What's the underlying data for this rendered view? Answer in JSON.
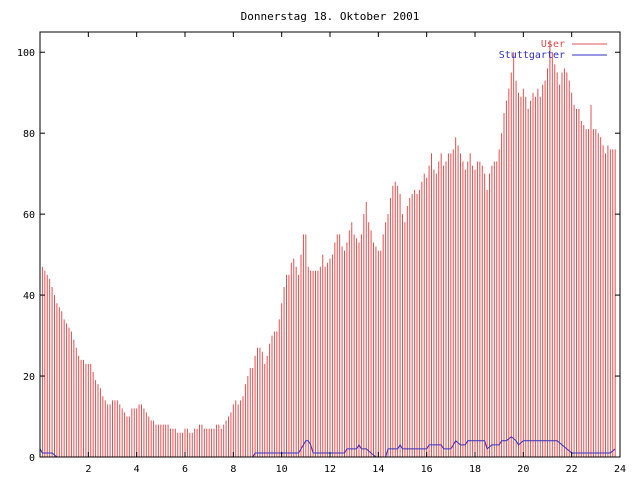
{
  "chart_data": {
    "type": "bar",
    "title": "Donnerstag 18. Oktober 2001",
    "xlabel": "",
    "ylabel": "",
    "xlim": [
      0,
      24
    ],
    "ylim": [
      0,
      105
    ],
    "x_ticks": [
      2,
      4,
      6,
      8,
      10,
      12,
      14,
      16,
      18,
      20,
      22,
      24
    ],
    "y_ticks": [
      0,
      20,
      40,
      60,
      80,
      100
    ],
    "grid": false,
    "legend_position": "top-right",
    "series": [
      {
        "name": "User",
        "style": "impulses",
        "color": "#e05050",
        "points": [
          [
            0.0,
            48
          ],
          [
            0.1,
            47
          ],
          [
            0.2,
            46
          ],
          [
            0.3,
            45
          ],
          [
            0.4,
            44
          ],
          [
            0.5,
            42
          ],
          [
            0.6,
            40
          ],
          [
            0.7,
            38
          ],
          [
            0.8,
            37
          ],
          [
            0.9,
            36
          ],
          [
            1.0,
            34
          ],
          [
            1.1,
            33
          ],
          [
            1.2,
            32
          ],
          [
            1.3,
            31
          ],
          [
            1.4,
            29
          ],
          [
            1.5,
            27
          ],
          [
            1.6,
            25
          ],
          [
            1.7,
            24
          ],
          [
            1.8,
            24
          ],
          [
            1.9,
            23
          ],
          [
            2.0,
            23
          ],
          [
            2.1,
            23
          ],
          [
            2.2,
            21
          ],
          [
            2.3,
            19
          ],
          [
            2.4,
            18
          ],
          [
            2.5,
            17
          ],
          [
            2.6,
            15
          ],
          [
            2.7,
            14
          ],
          [
            2.8,
            13
          ],
          [
            2.9,
            13
          ],
          [
            3.0,
            14
          ],
          [
            3.1,
            14
          ],
          [
            3.2,
            14
          ],
          [
            3.3,
            13
          ],
          [
            3.4,
            12
          ],
          [
            3.5,
            11
          ],
          [
            3.6,
            10
          ],
          [
            3.7,
            10
          ],
          [
            3.8,
            12
          ],
          [
            3.9,
            12
          ],
          [
            4.0,
            12
          ],
          [
            4.1,
            13
          ],
          [
            4.2,
            13
          ],
          [
            4.3,
            12
          ],
          [
            4.4,
            11
          ],
          [
            4.5,
            10
          ],
          [
            4.6,
            9
          ],
          [
            4.7,
            9
          ],
          [
            4.8,
            8
          ],
          [
            4.9,
            8
          ],
          [
            5.0,
            8
          ],
          [
            5.1,
            8
          ],
          [
            5.2,
            8
          ],
          [
            5.3,
            8
          ],
          [
            5.4,
            7
          ],
          [
            5.5,
            7
          ],
          [
            5.6,
            7
          ],
          [
            5.7,
            6
          ],
          [
            5.8,
            6
          ],
          [
            5.9,
            6
          ],
          [
            6.0,
            7
          ],
          [
            6.1,
            7
          ],
          [
            6.2,
            6
          ],
          [
            6.3,
            6
          ],
          [
            6.4,
            7
          ],
          [
            6.5,
            7
          ],
          [
            6.6,
            8
          ],
          [
            6.7,
            8
          ],
          [
            6.8,
            7
          ],
          [
            6.9,
            7
          ],
          [
            7.0,
            7
          ],
          [
            7.1,
            7
          ],
          [
            7.2,
            7
          ],
          [
            7.3,
            8
          ],
          [
            7.4,
            8
          ],
          [
            7.5,
            7
          ],
          [
            7.6,
            8
          ],
          [
            7.7,
            9
          ],
          [
            7.8,
            10
          ],
          [
            7.9,
            11
          ],
          [
            8.0,
            13
          ],
          [
            8.1,
            14
          ],
          [
            8.2,
            13
          ],
          [
            8.3,
            14
          ],
          [
            8.4,
            15
          ],
          [
            8.5,
            18
          ],
          [
            8.6,
            20
          ],
          [
            8.7,
            22
          ],
          [
            8.8,
            22
          ],
          [
            8.9,
            25
          ],
          [
            9.0,
            27
          ],
          [
            9.1,
            27
          ],
          [
            9.2,
            26
          ],
          [
            9.3,
            23
          ],
          [
            9.4,
            25
          ],
          [
            9.5,
            28
          ],
          [
            9.6,
            30
          ],
          [
            9.7,
            31
          ],
          [
            9.8,
            31
          ],
          [
            9.9,
            34
          ],
          [
            10.0,
            38
          ],
          [
            10.1,
            42
          ],
          [
            10.2,
            45
          ],
          [
            10.3,
            45
          ],
          [
            10.4,
            48
          ],
          [
            10.5,
            49
          ],
          [
            10.6,
            47
          ],
          [
            10.7,
            45
          ],
          [
            10.8,
            50
          ],
          [
            10.9,
            55
          ],
          [
            11.0,
            55
          ],
          [
            11.1,
            47
          ],
          [
            11.2,
            46
          ],
          [
            11.3,
            46
          ],
          [
            11.4,
            46
          ],
          [
            11.5,
            46
          ],
          [
            11.6,
            47
          ],
          [
            11.7,
            50
          ],
          [
            11.8,
            47
          ],
          [
            11.9,
            48
          ],
          [
            12.0,
            49
          ],
          [
            12.1,
            50
          ],
          [
            12.2,
            53
          ],
          [
            12.3,
            55
          ],
          [
            12.4,
            55
          ],
          [
            12.5,
            52
          ],
          [
            12.6,
            51
          ],
          [
            12.7,
            53
          ],
          [
            12.8,
            56
          ],
          [
            12.9,
            58
          ],
          [
            13.0,
            55
          ],
          [
            13.1,
            54
          ],
          [
            13.2,
            53
          ],
          [
            13.3,
            55
          ],
          [
            13.4,
            60
          ],
          [
            13.5,
            63
          ],
          [
            13.6,
            58
          ],
          [
            13.7,
            56
          ],
          [
            13.8,
            53
          ],
          [
            13.9,
            52
          ],
          [
            14.0,
            51
          ],
          [
            14.1,
            51
          ],
          [
            14.2,
            55
          ],
          [
            14.3,
            58
          ],
          [
            14.4,
            60
          ],
          [
            14.5,
            64
          ],
          [
            14.6,
            67
          ],
          [
            14.7,
            68
          ],
          [
            14.8,
            67
          ],
          [
            14.9,
            65
          ],
          [
            15.0,
            60
          ],
          [
            15.1,
            58
          ],
          [
            15.2,
            62
          ],
          [
            15.3,
            64
          ],
          [
            15.4,
            65
          ],
          [
            15.5,
            66
          ],
          [
            15.6,
            65
          ],
          [
            15.7,
            66
          ],
          [
            15.8,
            68
          ],
          [
            15.9,
            70
          ],
          [
            16.0,
            69
          ],
          [
            16.1,
            72
          ],
          [
            16.2,
            75
          ],
          [
            16.3,
            71
          ],
          [
            16.4,
            70
          ],
          [
            16.5,
            73
          ],
          [
            16.6,
            75
          ],
          [
            16.7,
            72
          ],
          [
            16.8,
            73
          ],
          [
            16.9,
            75
          ],
          [
            17.0,
            75
          ],
          [
            17.1,
            76
          ],
          [
            17.2,
            79
          ],
          [
            17.3,
            77
          ],
          [
            17.4,
            75
          ],
          [
            17.5,
            73
          ],
          [
            17.6,
            71
          ],
          [
            17.7,
            73
          ],
          [
            17.8,
            75
          ],
          [
            17.9,
            72
          ],
          [
            18.0,
            71
          ],
          [
            18.1,
            73
          ],
          [
            18.2,
            73
          ],
          [
            18.3,
            72
          ],
          [
            18.4,
            70
          ],
          [
            18.5,
            66
          ],
          [
            18.6,
            70
          ],
          [
            18.7,
            72
          ],
          [
            18.8,
            73
          ],
          [
            18.9,
            73
          ],
          [
            19.0,
            76
          ],
          [
            19.1,
            80
          ],
          [
            19.2,
            85
          ],
          [
            19.3,
            88
          ],
          [
            19.4,
            91
          ],
          [
            19.5,
            95
          ],
          [
            19.6,
            100
          ],
          [
            19.7,
            93
          ],
          [
            19.8,
            90
          ],
          [
            19.9,
            89
          ],
          [
            20.0,
            91
          ],
          [
            20.1,
            89
          ],
          [
            20.2,
            86
          ],
          [
            20.3,
            88
          ],
          [
            20.4,
            90
          ],
          [
            20.5,
            89
          ],
          [
            20.6,
            91
          ],
          [
            20.7,
            89
          ],
          [
            20.8,
            92
          ],
          [
            20.9,
            93
          ],
          [
            21.0,
            96
          ],
          [
            21.1,
            103
          ],
          [
            21.2,
            100
          ],
          [
            21.3,
            97
          ],
          [
            21.4,
            95
          ],
          [
            21.5,
            92
          ],
          [
            21.6,
            95
          ],
          [
            21.7,
            96
          ],
          [
            21.8,
            95
          ],
          [
            21.9,
            93
          ],
          [
            22.0,
            90
          ],
          [
            22.1,
            87
          ],
          [
            22.2,
            86
          ],
          [
            22.3,
            86
          ],
          [
            22.4,
            83
          ],
          [
            22.5,
            82
          ],
          [
            22.6,
            81
          ],
          [
            22.7,
            81
          ],
          [
            22.8,
            87
          ],
          [
            22.9,
            81
          ],
          [
            23.0,
            81
          ],
          [
            23.1,
            80
          ],
          [
            23.2,
            79
          ],
          [
            23.3,
            77
          ],
          [
            23.4,
            75
          ],
          [
            23.5,
            77
          ],
          [
            23.6,
            76
          ],
          [
            23.7,
            76
          ],
          [
            23.8,
            76
          ]
        ]
      },
      {
        "name": "Stuttgarter",
        "style": "line",
        "color": "#3030c0",
        "points": [
          [
            0.0,
            2
          ],
          [
            0.1,
            1
          ],
          [
            0.5,
            1
          ],
          [
            0.7,
            0
          ],
          [
            8.8,
            0
          ],
          [
            8.9,
            1
          ],
          [
            10.7,
            1
          ],
          [
            10.9,
            3
          ],
          [
            11.0,
            4
          ],
          [
            11.1,
            4
          ],
          [
            11.2,
            3
          ],
          [
            11.3,
            1
          ],
          [
            12.6,
            1
          ],
          [
            12.7,
            2
          ],
          [
            13.1,
            2
          ],
          [
            13.2,
            3
          ],
          [
            13.3,
            2
          ],
          [
            13.5,
            2
          ],
          [
            13.7,
            1
          ],
          [
            13.9,
            0
          ],
          [
            14.3,
            0
          ],
          [
            14.4,
            2
          ],
          [
            14.8,
            2
          ],
          [
            14.9,
            3
          ],
          [
            15.0,
            2
          ],
          [
            16.0,
            2
          ],
          [
            16.1,
            3
          ],
          [
            16.6,
            3
          ],
          [
            16.7,
            2
          ],
          [
            17.0,
            2
          ],
          [
            17.1,
            3
          ],
          [
            17.2,
            4
          ],
          [
            17.4,
            3
          ],
          [
            17.6,
            3
          ],
          [
            17.7,
            4
          ],
          [
            18.4,
            4
          ],
          [
            18.5,
            2
          ],
          [
            18.7,
            3
          ],
          [
            19.0,
            3
          ],
          [
            19.1,
            4
          ],
          [
            19.3,
            4
          ],
          [
            19.5,
            5
          ],
          [
            19.7,
            4
          ],
          [
            19.8,
            3
          ],
          [
            20.0,
            4
          ],
          [
            21.4,
            4
          ],
          [
            21.6,
            3
          ],
          [
            21.8,
            2
          ],
          [
            22.0,
            1
          ],
          [
            23.6,
            1
          ],
          [
            23.8,
            2
          ]
        ]
      }
    ]
  }
}
